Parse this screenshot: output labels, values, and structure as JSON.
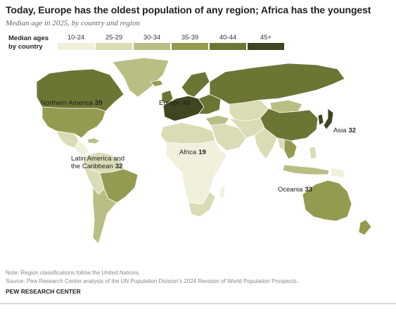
{
  "title": "Today, Europe has the oldest population of any region; Africa has the youngest",
  "subtitle": "Median age in 2025, by country and region",
  "legend": {
    "label_line1": "Median ages",
    "label_line2": "by country",
    "bins": [
      {
        "label": "10-24",
        "color": "#f0f0dc"
      },
      {
        "label": "25-29",
        "color": "#d9dcb4"
      },
      {
        "label": "30-34",
        "color": "#b9bf84"
      },
      {
        "label": "35-39",
        "color": "#949b50"
      },
      {
        "label": "40-44",
        "color": "#6d7535"
      },
      {
        "label": "45+",
        "color": "#3f4620"
      }
    ]
  },
  "regions": [
    {
      "id": "northern-america",
      "name": "Northern America",
      "value": "39"
    },
    {
      "id": "europe",
      "name": "Europe",
      "value": "43"
    },
    {
      "id": "asia",
      "name": "Asia",
      "value": "32"
    },
    {
      "id": "africa",
      "name": "Africa",
      "value": "19"
    },
    {
      "id": "latin-america",
      "name_line1": "Latin America and",
      "name_line2": "the Caribbean",
      "value": "32"
    },
    {
      "id": "oceania",
      "name": "Oceania",
      "value": "33"
    }
  ],
  "note": "Note: Region classifications follow the United Nations.",
  "source": "Source: Pew Research Center analysis of the UN Population Division’s 2024 Revision of World Population Prospects.",
  "brand": "PEW RESEARCH CENTER"
}
